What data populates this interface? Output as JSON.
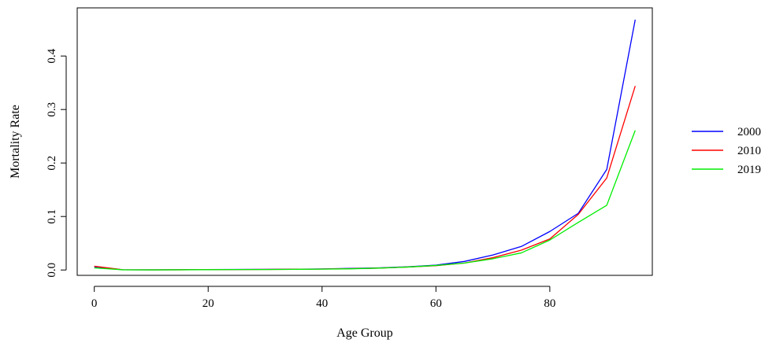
{
  "chart_data": {
    "type": "line",
    "title": "",
    "xlabel": "Age Group",
    "ylabel": "Mortality Rate",
    "xlim": [
      -3,
      98
    ],
    "ylim": [
      -0.01,
      0.49
    ],
    "x_ticks": [
      0,
      20,
      40,
      60,
      80
    ],
    "x_tick_labels": [
      "0",
      "20",
      "40",
      "60",
      "80"
    ],
    "y_ticks": [
      0.0,
      0.1,
      0.2,
      0.3,
      0.4
    ],
    "y_tick_labels": [
      "0.0",
      "0.1",
      "0.2",
      "0.3",
      "0.4"
    ],
    "grid": false,
    "legend_position": "right",
    "x": [
      0,
      5,
      10,
      15,
      20,
      25,
      30,
      35,
      40,
      45,
      50,
      55,
      60,
      65,
      70,
      75,
      80,
      85,
      90,
      95
    ],
    "series": [
      {
        "name": "2000",
        "color": "#0000ff",
        "values": [
          0.006,
          0.0005,
          0.0003,
          0.0005,
          0.0008,
          0.001,
          0.0012,
          0.0015,
          0.002,
          0.003,
          0.004,
          0.006,
          0.009,
          0.016,
          0.028,
          0.044,
          0.072,
          0.106,
          0.188,
          0.468
        ]
      },
      {
        "name": "2010",
        "color": "#ff0000",
        "values": [
          0.007,
          0.0005,
          0.0003,
          0.0004,
          0.0007,
          0.0008,
          0.001,
          0.0013,
          0.0018,
          0.0025,
          0.0035,
          0.0055,
          0.008,
          0.013,
          0.023,
          0.037,
          0.058,
          0.104,
          0.172,
          0.344
        ]
      },
      {
        "name": "2019",
        "color": "#00ee00",
        "values": [
          0.004,
          0.0004,
          0.0002,
          0.0004,
          0.0006,
          0.0008,
          0.0009,
          0.0012,
          0.0016,
          0.0022,
          0.0035,
          0.0055,
          0.0085,
          0.013,
          0.021,
          0.032,
          0.056,
          0.089,
          0.121,
          0.261
        ]
      }
    ]
  }
}
